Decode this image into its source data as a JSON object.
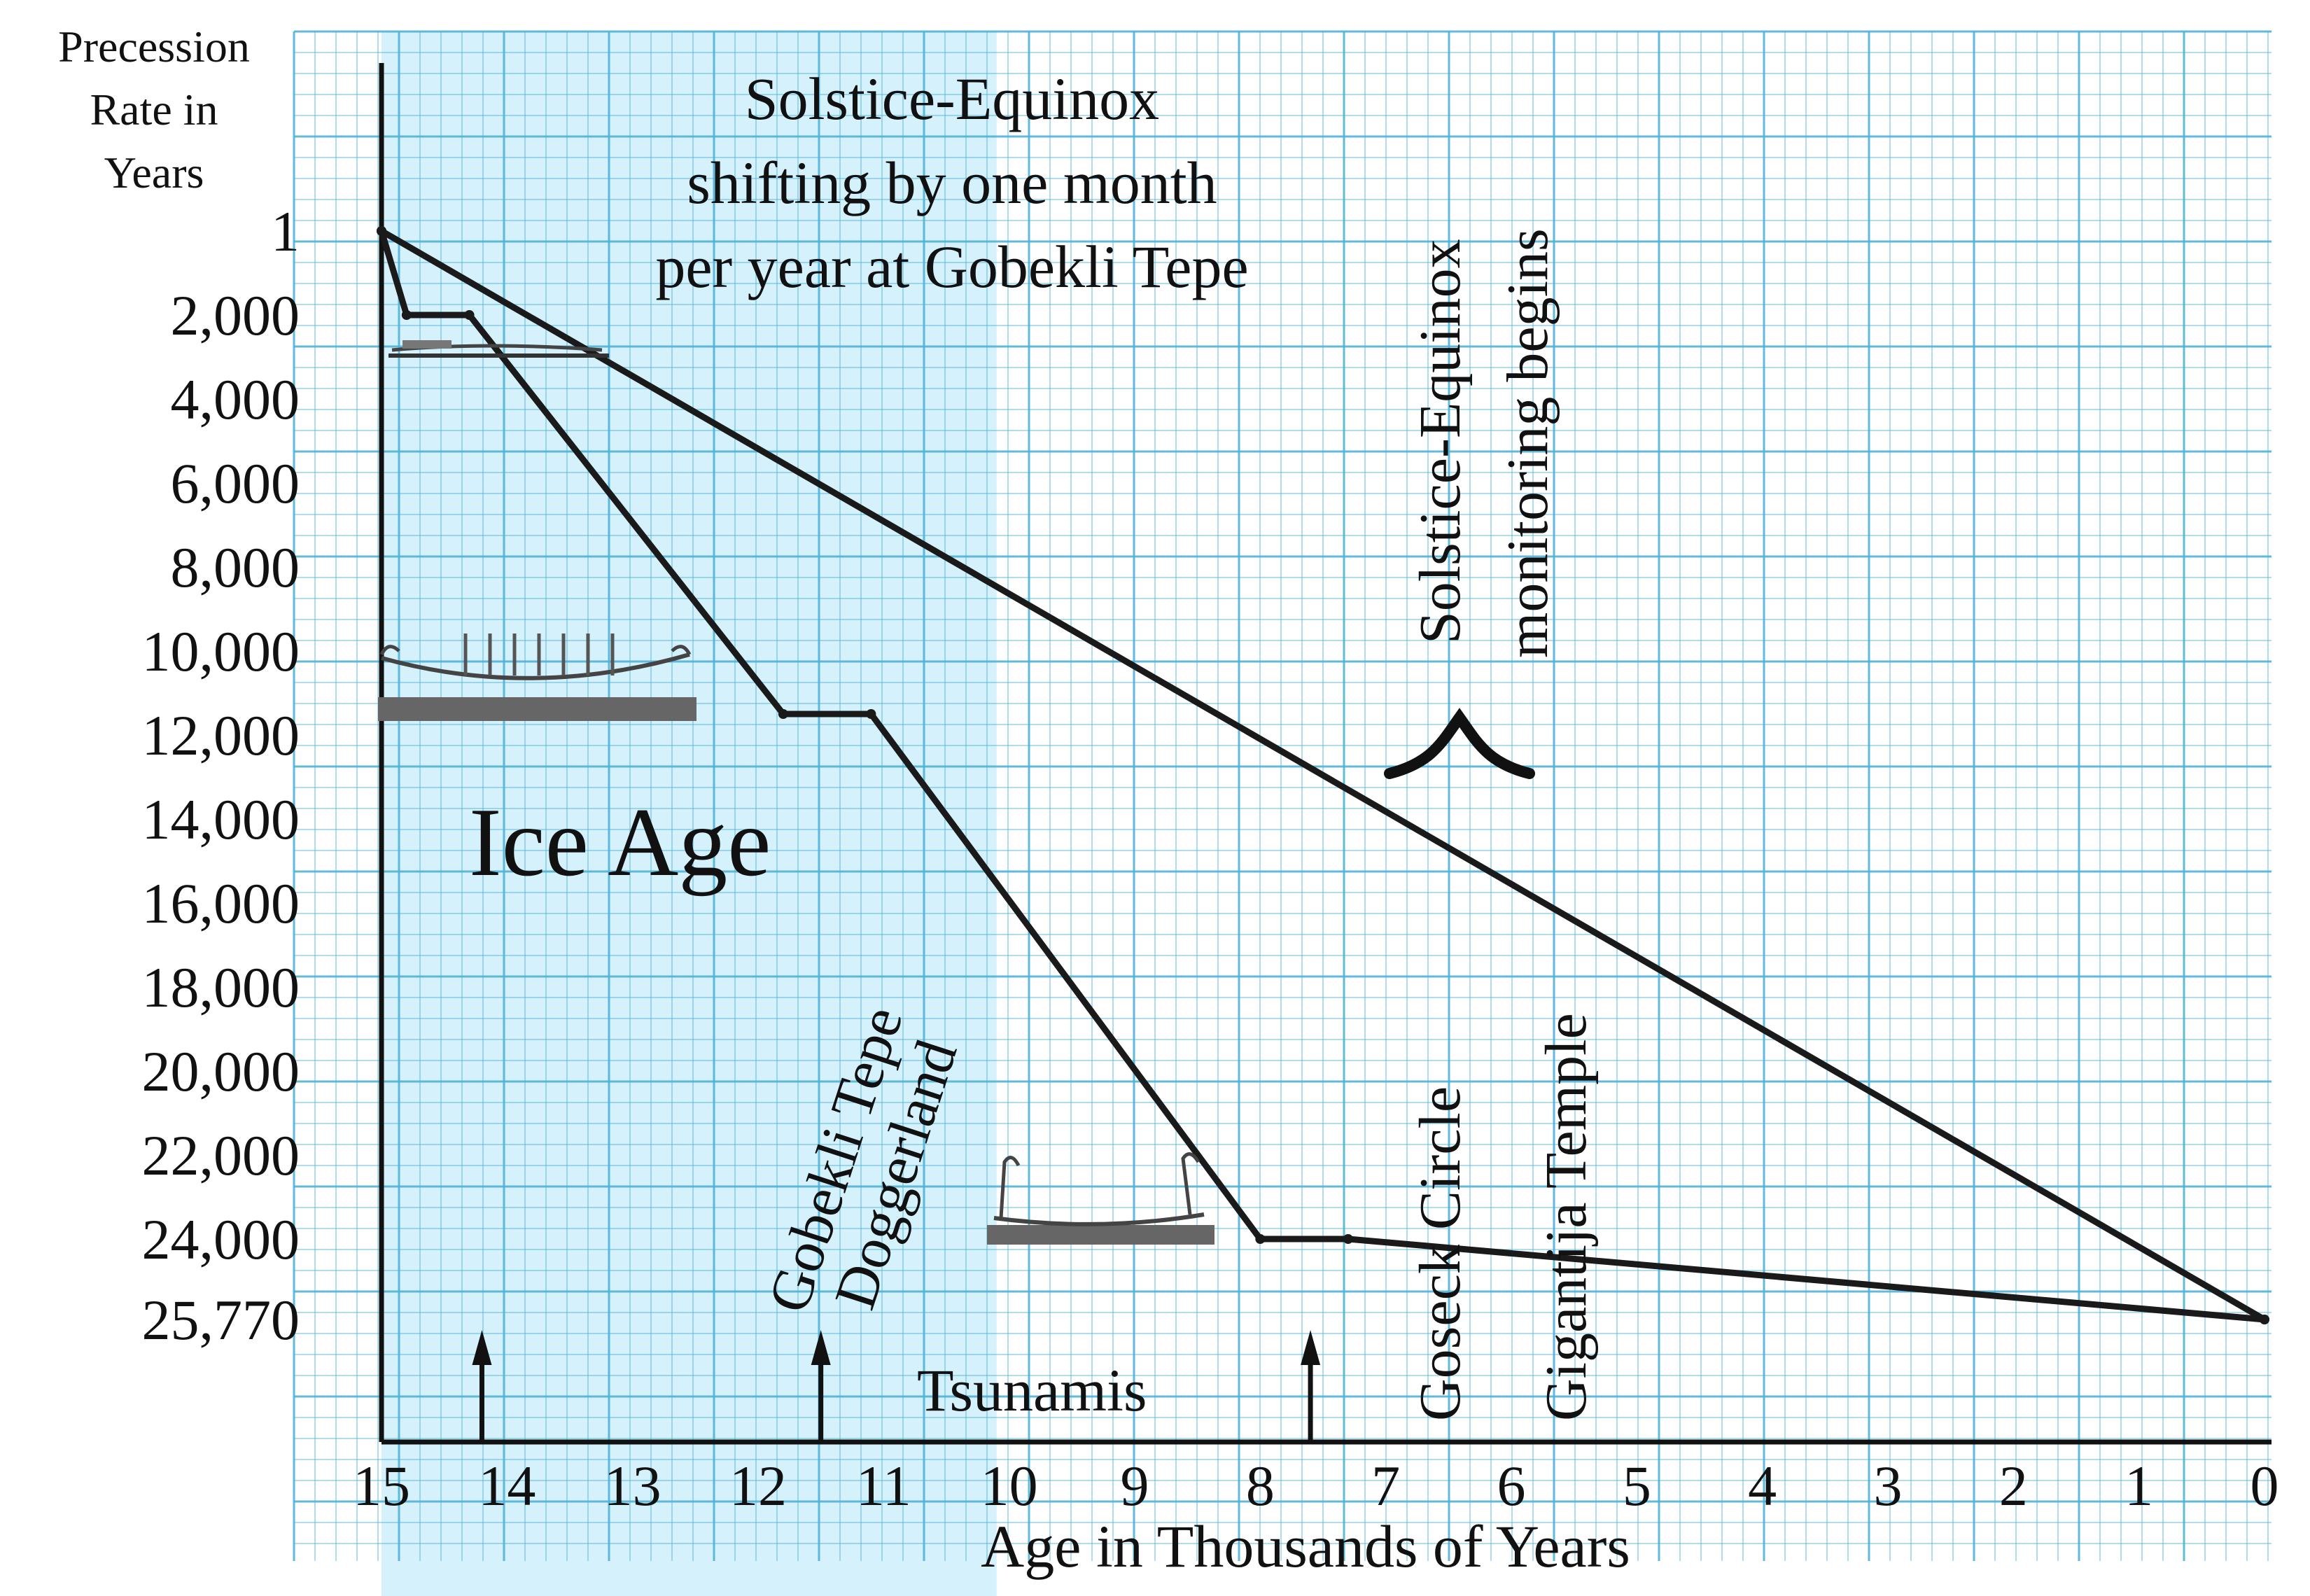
{
  "chart_data": {
    "type": "line",
    "xlabel": "Age in Thousands of Years",
    "ylabel": [
      "Precession",
      "Rate in",
      "Years"
    ],
    "x_ticks": [
      "15",
      "14",
      "13",
      "12",
      "11",
      "10",
      "9",
      "8",
      "7",
      "6",
      "5",
      "4",
      "3",
      "2",
      "1",
      "0"
    ],
    "y_ticks": [
      "1",
      "2,000",
      "4,000",
      "6,000",
      "8,000",
      "10,000",
      "12,000",
      "14,000",
      "16,000",
      "18,000",
      "20,000",
      "22,000",
      "24,000",
      "25,770"
    ],
    "xlim": [
      15,
      0
    ],
    "grid": true,
    "series": [
      {
        "points": [
          [
            15,
            1
          ],
          [
            0,
            25770
          ]
        ]
      },
      {
        "points": [
          [
            15,
            1
          ],
          [
            14.8,
            2000
          ],
          [
            14.3,
            2000
          ],
          [
            11.8,
            11500
          ],
          [
            11.1,
            11500
          ],
          [
            8,
            24000
          ],
          [
            7.3,
            24000
          ],
          [
            0,
            25770
          ]
        ]
      }
    ],
    "shaded_region": {
      "x_from": 15,
      "x_to": 10.1
    },
    "annotations": {
      "band_title": [
        "Solstice-Equinox",
        "shifting by one month",
        "per year at Gobekli Tepe"
      ],
      "monitoring": [
        "Solstice-Equinox",
        "monitoring begins"
      ],
      "ice_age": "Ice Age",
      "sites_left": [
        "Gobekli Tepe",
        "Doggerland"
      ],
      "tsunamis": "Tsunamis",
      "gosek": "Goseck Circle",
      "ggantija": "Gigantija Temple"
    },
    "arrows_at_x": [
      14.2,
      11.5,
      7.6
    ],
    "colors": {
      "grid": "#4fb3d9",
      "band": "#d5f1fb",
      "line": "#1a1a1a"
    }
  }
}
